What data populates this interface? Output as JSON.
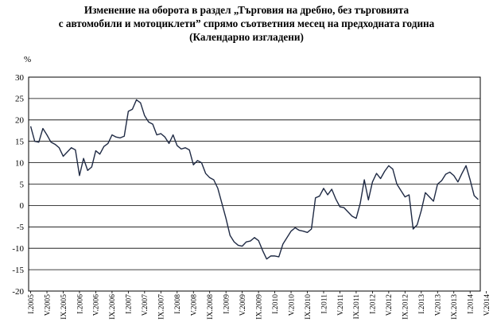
{
  "chart_data": {
    "type": "line",
    "title_lines": [
      "Изменение на оборота в раздел „Търговия на дребно, без търговията",
      "с автомобили и мотоциклети” спрямо съответния месец на предходната година",
      "(Календарно изгладени)"
    ],
    "ylabel": "%",
    "ylim": [
      -20,
      30
    ],
    "yticks": [
      30,
      25,
      20,
      15,
      10,
      5,
      0,
      -5,
      -10,
      -15,
      -20
    ],
    "grid": true,
    "xtick_labels": [
      "I.2005",
      "V.2005",
      "IX.2005",
      "I.2006",
      "V.2006",
      "IX.2006",
      "I.2007",
      "V.2007",
      "IX.2007",
      "I.2008",
      "V.2008",
      "IX.2008",
      "I.2009",
      "V.2009",
      "IX.2009",
      "I.2010",
      "V.2010",
      "IX.2010",
      "I.2011",
      "V.2011",
      "IX.2011",
      "I.2012",
      "V.2012",
      "IX.2012",
      "I.2013",
      "V.2013",
      "IX.2013",
      "I.2014",
      "V.2014"
    ],
    "series": [
      {
        "color": "#1f2a44",
        "values": [
          18.5,
          15.0,
          14.8,
          18.0,
          16.5,
          14.8,
          14.3,
          13.5,
          11.5,
          12.5,
          13.5,
          13.0,
          7.0,
          11.0,
          8.2,
          9.0,
          12.8,
          12.0,
          13.8,
          14.5,
          16.5,
          16.0,
          15.8,
          16.2,
          22.0,
          22.5,
          24.7,
          24.0,
          21.0,
          19.5,
          19.0,
          16.5,
          16.8,
          16.0,
          14.5,
          16.5,
          14.0,
          13.2,
          13.5,
          13.0,
          9.5,
          10.5,
          10.0,
          7.5,
          6.5,
          6.0,
          4.0,
          0.5,
          -3.0,
          -7.0,
          -8.5,
          -9.3,
          -9.5,
          -8.5,
          -8.3,
          -7.5,
          -8.2,
          -10.5,
          -12.5,
          -11.8,
          -11.8,
          -12.0,
          -9.0,
          -7.5,
          -6.0,
          -5.2,
          -5.8,
          -6.0,
          -6.3,
          -5.5,
          1.8,
          2.2,
          4.0,
          2.5,
          3.8,
          1.5,
          -0.3,
          -0.5,
          -1.5,
          -2.5,
          -3.0,
          0.5,
          6.0,
          1.3,
          5.5,
          7.5,
          6.3,
          8.0,
          9.3,
          8.5,
          5.0,
          3.5,
          2.0,
          2.5,
          -5.5,
          -4.5,
          -1.2,
          3.0,
          2.0,
          1.0,
          5.0,
          5.8,
          7.3,
          7.8,
          7.0,
          5.5,
          7.5,
          9.3,
          6.0,
          2.3,
          1.4
        ]
      }
    ]
  }
}
